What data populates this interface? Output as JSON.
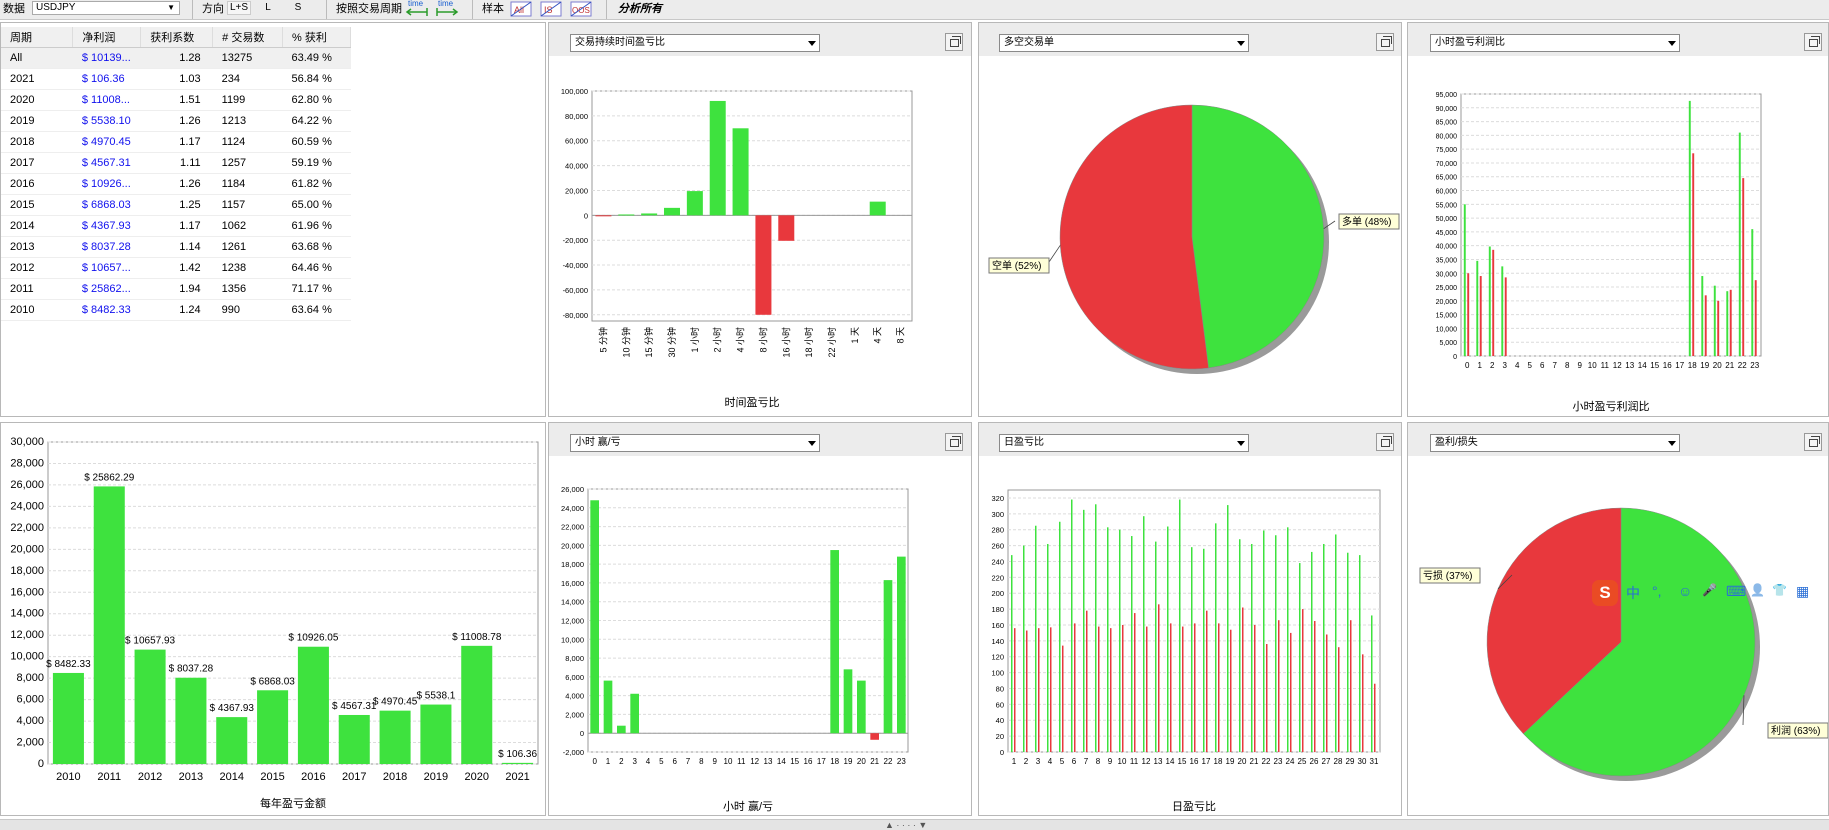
{
  "toolbar": {
    "data_label": "数据",
    "symbol": "USDJPY",
    "direction_label": "方向",
    "dir_ls": "L+S",
    "dir_l": "L",
    "dir_s": "S",
    "period_label": "按照交易周期",
    "time_a": "time",
    "time_b": "time",
    "sample_label": "样本",
    "analysis_label": "分析所有"
  },
  "table": {
    "headers": [
      "周期",
      "净利润",
      "获利系数",
      "# 交易数",
      "% 获利"
    ],
    "rows": [
      [
        "All",
        "$ 10139...",
        "1.28",
        "13275",
        "63.49 %"
      ],
      [
        "2021",
        "$ 106.36",
        "1.03",
        "234",
        "56.84 %"
      ],
      [
        "2020",
        "$ 11008...",
        "1.51",
        "1199",
        "62.80 %"
      ],
      [
        "2019",
        "$ 5538.10",
        "1.26",
        "1213",
        "64.22 %"
      ],
      [
        "2018",
        "$ 4970.45",
        "1.17",
        "1124",
        "60.59 %"
      ],
      [
        "2017",
        "$ 4567.31",
        "1.11",
        "1257",
        "59.19 %"
      ],
      [
        "2016",
        "$ 10926...",
        "1.26",
        "1184",
        "61.82 %"
      ],
      [
        "2015",
        "$ 6868.03",
        "1.25",
        "1157",
        "65.00 %"
      ],
      [
        "2014",
        "$ 4367.93",
        "1.17",
        "1062",
        "61.96 %"
      ],
      [
        "2013",
        "$ 8037.28",
        "1.14",
        "1261",
        "63.68 %"
      ],
      [
        "2012",
        "$ 10657...",
        "1.42",
        "1238",
        "64.46 %"
      ],
      [
        "2011",
        "$ 25862...",
        "1.94",
        "1356",
        "71.17 %"
      ],
      [
        "2010",
        "$ 8482.33",
        "1.24",
        "990",
        "63.64 %"
      ]
    ]
  },
  "panels": {
    "duration": {
      "combo": "交易持续时间盈亏比",
      "title": "时间盈亏比"
    },
    "longshort": {
      "combo": "多空交易单"
    },
    "hourprofit": {
      "combo": "小时盈亏利润比",
      "title": "小时盈亏利润比"
    },
    "yearly": {
      "title": "每年盈亏金额"
    },
    "hourwl": {
      "combo": "小时 赢/亏",
      "title": "小时 赢/亏"
    },
    "daily": {
      "combo": "日盈亏比",
      "title": "日盈亏比"
    },
    "pl": {
      "combo": "盈利/损失"
    }
  },
  "colors": {
    "green": "#3ee23e",
    "red": "#e8383d",
    "grid": "#dcdcdc",
    "money": "#1010ee"
  },
  "ime": {
    "items": [
      "中",
      "°,",
      "☺",
      "🎤",
      "⌨",
      "👤",
      "👕",
      "▦"
    ]
  },
  "chart_data": [
    {
      "type": "bar",
      "categories": [
        "5 分钟",
        "10 分钟",
        "15 分钟",
        "30 分钟",
        "1 小时",
        "2 小时",
        "4 小时",
        "8 小时",
        "16 小时",
        "18 小时",
        "22 小时",
        "1 天",
        "4 天",
        "8 天"
      ],
      "values": [
        -500,
        700,
        1500,
        6000,
        19500,
        92000,
        70000,
        -80000,
        -20500,
        0,
        0,
        0,
        11000,
        0
      ],
      "ylim": [
        -85000,
        100000
      ],
      "yticks": [
        100000,
        80000,
        60000,
        40000,
        20000,
        0,
        -20000,
        -40000,
        -60000,
        -80000
      ],
      "xlabel": "时间盈亏比"
    },
    {
      "type": "pie",
      "slices": [
        {
          "name": "多单",
          "pct": 48,
          "color": "green"
        },
        {
          "name": "空单",
          "pct": 52,
          "color": "red"
        }
      ],
      "labels": [
        "多单 (48%)",
        "空单 (52%)"
      ]
    },
    {
      "type": "bar",
      "categories": [
        "0",
        "1",
        "2",
        "3",
        "4",
        "5",
        "6",
        "7",
        "8",
        "9",
        "10",
        "11",
        "12",
        "13",
        "14",
        "15",
        "16",
        "17",
        "18",
        "19",
        "20",
        "21",
        "22",
        "23"
      ],
      "series": [
        {
          "color": "green",
          "values": [
            55000,
            34500,
            39700,
            32500,
            0,
            0,
            0,
            0,
            0,
            0,
            0,
            0,
            0,
            0,
            0,
            0,
            0,
            0,
            92500,
            29000,
            25500,
            23500,
            81000,
            46000
          ]
        },
        {
          "color": "red",
          "values": [
            30000,
            29000,
            38500,
            28500,
            0,
            0,
            0,
            0,
            0,
            0,
            0,
            0,
            0,
            0,
            0,
            0,
            0,
            0,
            73500,
            22000,
            20000,
            24000,
            64500,
            27500
          ]
        }
      ],
      "ylim": [
        0,
        95000
      ],
      "yticks": [
        0,
        5000,
        10000,
        15000,
        20000,
        25000,
        30000,
        35000,
        40000,
        45000,
        50000,
        55000,
        60000,
        65000,
        70000,
        75000,
        80000,
        85000,
        90000,
        95000
      ],
      "xlabel": "小时盈亏利润比"
    },
    {
      "type": "bar",
      "categories": [
        "2010",
        "2011",
        "2012",
        "2013",
        "2014",
        "2015",
        "2016",
        "2017",
        "2018",
        "2019",
        "2020",
        "2021"
      ],
      "values": [
        8482.33,
        25862.29,
        10657.93,
        8037.28,
        4367.93,
        6868.03,
        10926.05,
        4567.31,
        4970.45,
        5538.1,
        11008.78,
        106.36
      ],
      "data_labels": [
        "$ 8482.33",
        "$ 25862.29",
        "$ 10657.93",
        "$ 8037.28",
        "$ 4367.93",
        "$ 6868.03",
        "$ 10926.05",
        "$ 4567.31",
        "$ 4970.45",
        "$ 5538.1",
        "$ 11008.78",
        "$ 106.36"
      ],
      "ylim": [
        0,
        30000
      ],
      "yticks": [
        0,
        2000,
        4000,
        6000,
        8000,
        10000,
        12000,
        14000,
        16000,
        18000,
        20000,
        22000,
        24000,
        26000,
        28000,
        30000
      ],
      "xlabel": "每年盈亏金额"
    },
    {
      "type": "bar",
      "categories": [
        "0",
        "1",
        "2",
        "3",
        "4",
        "5",
        "6",
        "7",
        "8",
        "9",
        "10",
        "11",
        "12",
        "13",
        "14",
        "15",
        "16",
        "17",
        "18",
        "19",
        "20",
        "21",
        "22",
        "23"
      ],
      "values": [
        24800,
        5600,
        800,
        4200,
        0,
        0,
        0,
        0,
        0,
        0,
        0,
        0,
        0,
        0,
        0,
        0,
        0,
        0,
        19500,
        6800,
        5600,
        -700,
        16300,
        18800
      ],
      "ylim": [
        -2000,
        26000
      ],
      "yticks": [
        -2000,
        0,
        2000,
        4000,
        6000,
        8000,
        10000,
        12000,
        14000,
        16000,
        18000,
        20000,
        22000,
        24000,
        26000
      ],
      "xlabel": "小时 赢/亏"
    },
    {
      "type": "bar",
      "categories": [
        "1",
        "2",
        "3",
        "4",
        "5",
        "6",
        "7",
        "8",
        "9",
        "10",
        "11",
        "12",
        "13",
        "14",
        "15",
        "16",
        "17",
        "18",
        "19",
        "20",
        "21",
        "22",
        "23",
        "24",
        "25",
        "26",
        "27",
        "28",
        "29",
        "30",
        "31"
      ],
      "series": [
        {
          "color": "green",
          "values": [
            248,
            260,
            285,
            262,
            290,
            318,
            305,
            312,
            283,
            280,
            272,
            297,
            265,
            284,
            318,
            258,
            256,
            288,
            311,
            268,
            262,
            279,
            273,
            283,
            238,
            252,
            262,
            274,
            251,
            248,
            172
          ]
        },
        {
          "color": "red",
          "values": [
            156,
            153,
            156,
            157,
            134,
            162,
            178,
            158,
            156,
            160,
            175,
            158,
            186,
            162,
            158,
            162,
            178,
            162,
            154,
            182,
            160,
            136,
            166,
            150,
            180,
            165,
            148,
            132,
            166,
            123,
            86
          ]
        }
      ],
      "ylim": [
        0,
        330
      ],
      "yticks": [
        0,
        20,
        40,
        60,
        80,
        100,
        120,
        140,
        160,
        180,
        200,
        220,
        240,
        260,
        280,
        300,
        320
      ],
      "xlabel": "日盈亏比"
    },
    {
      "type": "pie",
      "slices": [
        {
          "name": "利润",
          "pct": 63,
          "color": "green"
        },
        {
          "name": "亏损",
          "pct": 37,
          "color": "red"
        }
      ],
      "labels": [
        "利润 (63%)",
        "亏损 (37%)"
      ]
    }
  ]
}
